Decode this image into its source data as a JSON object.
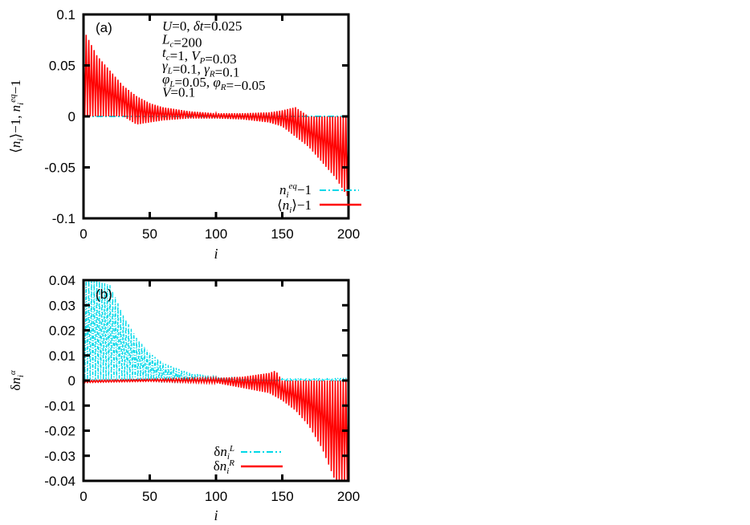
{
  "chart_data": [
    {
      "type": "line",
      "panel_label": "(a)",
      "title": "",
      "xlabel": "i",
      "ylabel": "⟨n_i⟩−1, n_i^eq−1",
      "xlim": [
        0,
        200
      ],
      "ylim": [
        -0.1,
        0.1
      ],
      "x_ticks": [
        "0",
        "50",
        "100",
        "150",
        "200"
      ],
      "y_ticks": [
        "0.1",
        "0.05",
        "0",
        "-0.05",
        "-0.1"
      ],
      "grid": false,
      "legend_position": "lower right",
      "annotations": [
        "U=0, δt=0.025",
        "L_c=200",
        "t_c=1, V_P=0.03",
        "γ_L=0.1, γ_R=0.1",
        "φ_L=0.05, φ_R=−0.05",
        "V=0.1"
      ],
      "series": [
        {
          "name": "n_i^eq−1",
          "color": "#00d8e8",
          "style": "dash-dot",
          "x": [
            0,
            50,
            100,
            150,
            200
          ],
          "values": [
            0,
            0,
            0,
            0,
            0
          ]
        },
        {
          "name": "⟨n_i⟩−1",
          "color": "#ff0000",
          "style": "solid (rapidly oscillating between sites)",
          "envelope_upper": {
            "x": [
              0,
              10,
              20,
              30,
              40,
              50,
              60,
              80,
              100,
              120,
              140,
              150,
              160,
              170,
              180,
              190,
              200
            ],
            "values": [
              0.085,
              0.06,
              0.045,
              0.03,
              0.02,
              0.013,
              0.009,
              0.005,
              0.003,
              0.003,
              0.004,
              0.006,
              0.009,
              0.0,
              0.0,
              0.0,
              0.0
            ]
          },
          "envelope_lower": {
            "x": [
              0,
              10,
              20,
              30,
              40,
              50,
              60,
              80,
              100,
              120,
              140,
              150,
              160,
              170,
              180,
              190,
              200
            ],
            "values": [
              0.0,
              0.0,
              0.0,
              0.0,
              -0.008,
              -0.006,
              -0.004,
              -0.002,
              -0.002,
              -0.003,
              -0.006,
              -0.01,
              -0.02,
              -0.03,
              -0.045,
              -0.06,
              -0.08
            ]
          }
        }
      ]
    },
    {
      "type": "line",
      "panel_label": "(b)",
      "title": "",
      "xlabel": "i",
      "ylabel": "δn_i^α",
      "xlim": [
        0,
        200
      ],
      "ylim": [
        -0.04,
        0.04
      ],
      "x_ticks": [
        "0",
        "50",
        "100",
        "150",
        "200"
      ],
      "y_ticks": [
        "0.04",
        "0.03",
        "0.02",
        "0.01",
        "0",
        "-0.01",
        "-0.02",
        "-0.03",
        "-0.04"
      ],
      "grid": false,
      "legend_position": "lower center",
      "series": [
        {
          "name": "δn_i^L",
          "color": "#00d8e8",
          "style": "dash-dot (rapidly oscillating)",
          "envelope_upper": {
            "x": [
              0,
              10,
              20,
              30,
              40,
              50,
              60,
              80,
              100,
              120,
              140,
              160,
              180,
              200
            ],
            "values": [
              0.04,
              0.04,
              0.038,
              0.026,
              0.017,
              0.011,
              0.007,
              0.003,
              0.0015,
              0.001,
              0.0008,
              0.0006,
              0.0007,
              0.0008
            ]
          },
          "envelope_lower": {
            "x": [
              0,
              50,
              60,
              70,
              100,
              200
            ],
            "values": [
              0.0,
              0.0,
              -0.001,
              -0.001,
              0.0,
              0.0
            ]
          }
        },
        {
          "name": "δn_i^R",
          "color": "#ff0000",
          "style": "solid (rapidly oscillating)",
          "envelope_upper": {
            "x": [
              0,
              50,
              100,
              120,
              140,
              145,
              150,
              200
            ],
            "values": [
              0.0,
              0.0005,
              0.001,
              0.0015,
              0.003,
              0.004,
              0.0,
              0.0
            ]
          },
          "envelope_lower": {
            "x": [
              0,
              50,
              100,
              120,
              140,
              150,
              160,
              170,
              180,
              190,
              200
            ],
            "values": [
              -0.0008,
              -0.0003,
              -0.001,
              -0.003,
              -0.005,
              -0.008,
              -0.012,
              -0.018,
              -0.027,
              -0.04,
              -0.04
            ]
          }
        }
      ]
    }
  ],
  "panels": {
    "a": {
      "label": "(a)",
      "xlabel": "i",
      "legend": [
        "n",
        "⟨n"
      ]
    },
    "b": {
      "label": "(b)",
      "xlabel": "i"
    }
  }
}
